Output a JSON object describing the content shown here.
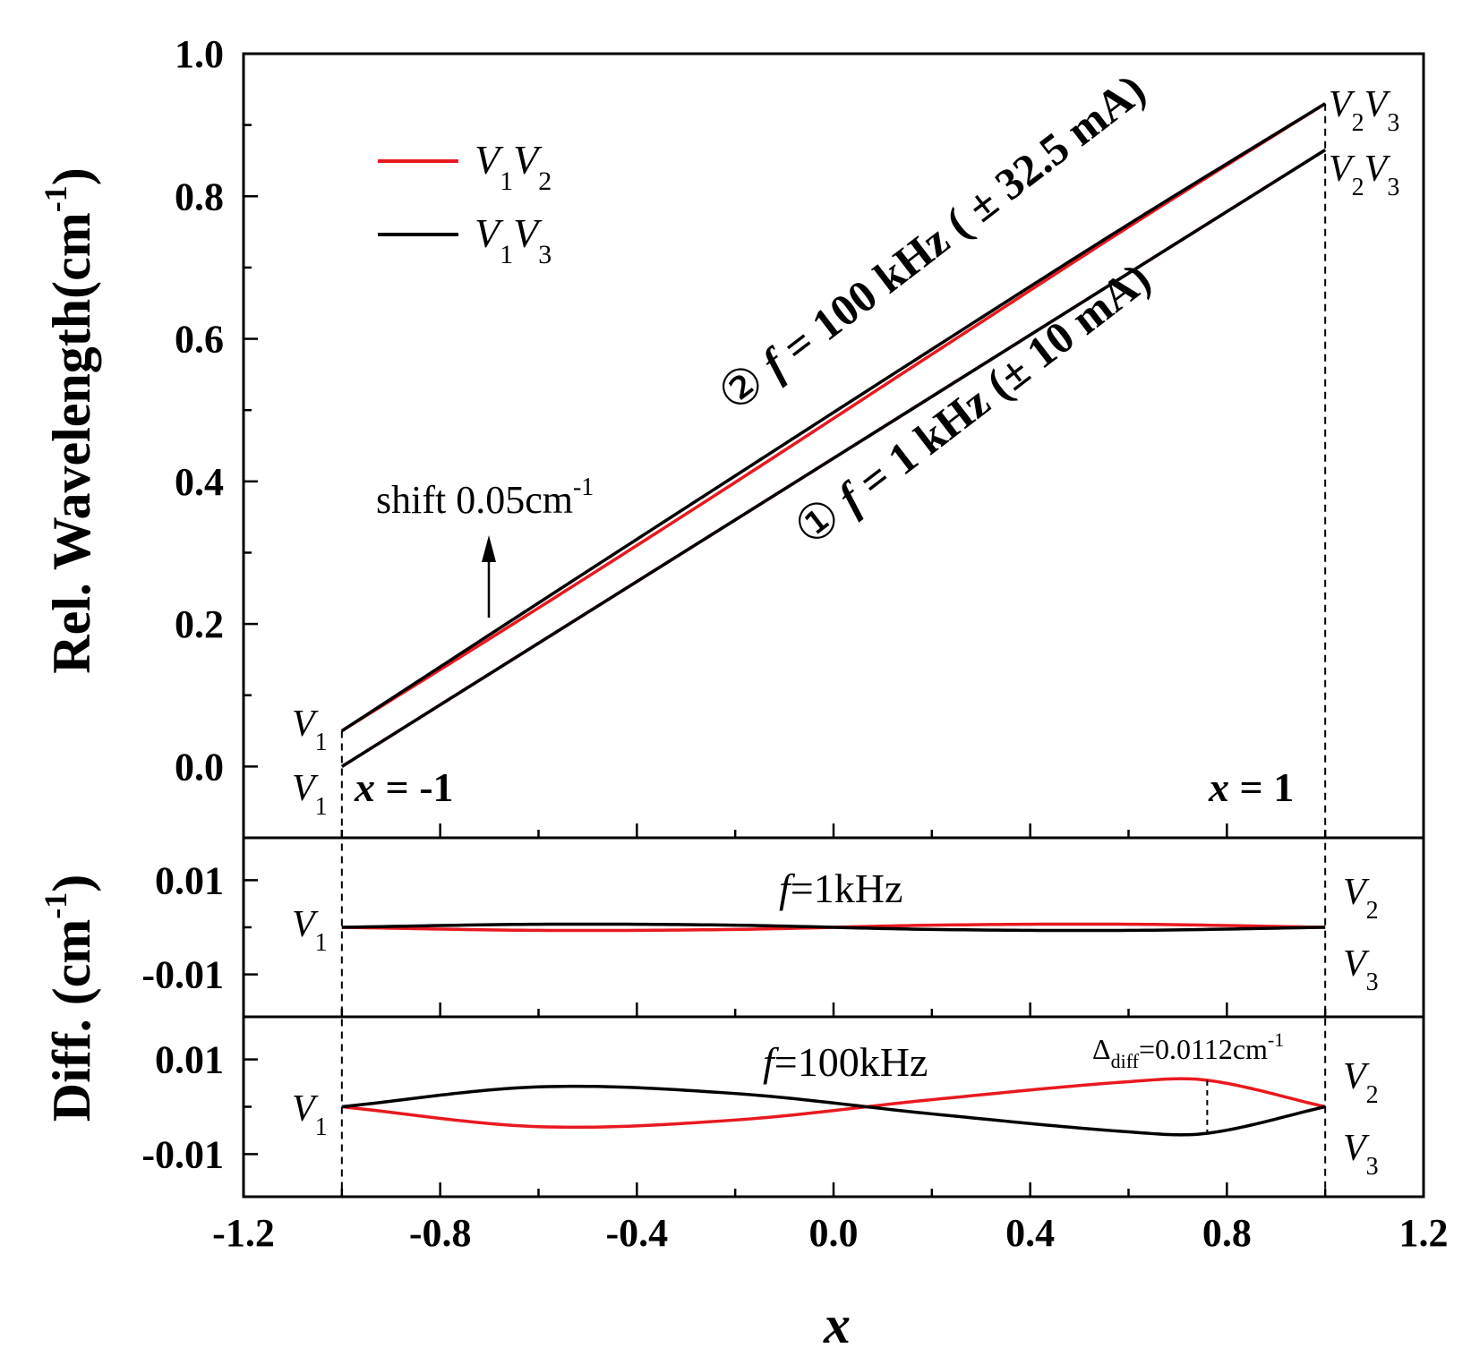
{
  "chart_data": [
    {
      "type": "line",
      "panel": "main",
      "title": "",
      "ylabel": "Rel. Wavelength(cm",
      "ylabel_sup": "-1",
      "xlim": [
        -1.2,
        1.2
      ],
      "ylim": [
        -0.1,
        1.0
      ],
      "yticks": [
        0.0,
        0.2,
        0.4,
        0.6,
        0.8,
        1.0
      ],
      "ytick_labels": [
        "0.0",
        "0.2",
        "0.4",
        "0.6",
        "0.8",
        "1.0"
      ],
      "series": [
        {
          "name": "① f = 1 kHz V1V2",
          "color": "#e8191f",
          "x": [
            -1,
            1
          ],
          "y": [
            0.0,
            0.865
          ]
        },
        {
          "name": "① f = 1 kHz V1V3",
          "color": "#000000",
          "x": [
            -1,
            1
          ],
          "y": [
            0.0,
            0.865
          ]
        },
        {
          "name": "② f = 100 kHz V1V2",
          "color": "#e8191f",
          "x": [
            -1,
            -0.6,
            -0.2,
            0.2,
            0.6,
            1
          ],
          "y": [
            0.05,
            0.2225,
            0.3987,
            0.5783,
            0.757,
            0.93
          ]
        },
        {
          "name": "② f = 100 kHz V1V3",
          "color": "#000000",
          "x": [
            -1,
            -0.6,
            -0.2,
            0.2,
            0.6,
            1
          ],
          "y": [
            0.05,
            0.2295,
            0.4078,
            0.5853,
            0.7607,
            0.93
          ]
        }
      ],
      "annotations": {
        "curve2_circle": "②",
        "curve2_f": "f",
        "curve2_text": " = 100 kHz ( ± 32.5 mA)",
        "curve1_circle": "①",
        "curve1_f": "f",
        "curve1_text": " = 1 kHz (± 10 mA)",
        "shift_text": "shift 0.05cm",
        "shift_sup": "-1",
        "x_left_x": "x",
        "x_left_rest": " = -1",
        "x_right_x": "x",
        "x_right_rest": " = 1",
        "v1": "V",
        "v1_sub": "1",
        "v2": "V",
        "v2_sub": "2",
        "v3": "V",
        "v3_sub": "3"
      },
      "legend": {
        "position": "top-left",
        "entries": [
          {
            "label": "V",
            "sub": "1",
            "label2": "V",
            "sub2": "2",
            "color": "#e8191f"
          },
          {
            "label": "V",
            "sub": "1",
            "label2": "V",
            "sub2": "3",
            "color": "#000000"
          }
        ]
      }
    },
    {
      "type": "line",
      "panel": "diff-1kHz",
      "ylim": [
        -0.019,
        0.019
      ],
      "yticks": [
        0.01,
        -0.01
      ],
      "ytick_labels": [
        "0.01",
        "-0.01"
      ],
      "label_f": "f",
      "label_rest": "=1kHz",
      "series": [
        {
          "name": "V1V2",
          "color": "#e8191f",
          "x": [
            -1,
            -0.6,
            -0.2,
            0.2,
            0.6,
            1
          ],
          "y": [
            0.0,
            -0.00065,
            -0.00045,
            0.00045,
            0.00065,
            0.0
          ]
        },
        {
          "name": "V1V3",
          "color": "#000000",
          "x": [
            -1,
            -0.6,
            -0.2,
            0.2,
            0.6,
            1
          ],
          "y": [
            0.0,
            0.00065,
            0.00045,
            -0.00045,
            -0.00065,
            0.0
          ]
        }
      ]
    },
    {
      "type": "line",
      "panel": "diff-100kHz",
      "ylim": [
        -0.019,
        0.019
      ],
      "yticks": [
        0.01,
        -0.01
      ],
      "ytick_labels": [
        "0.01",
        "-0.01"
      ],
      "label_f": "f",
      "label_rest": "=100kHz",
      "delta_text": "Δ",
      "delta_sub": "diff",
      "delta_rest": "=0.0112cm",
      "delta_sup": "-1",
      "series": [
        {
          "name": "V1V2",
          "color": "#e8191f",
          "x": [
            -1,
            -0.6,
            -0.2,
            0.2,
            0.6,
            0.76,
            1
          ],
          "y": [
            0.0,
            -0.0042,
            -0.0028,
            0.0015,
            0.0053,
            0.0056,
            0.0
          ]
        },
        {
          "name": "V1V3",
          "color": "#000000",
          "x": [
            -1,
            -0.6,
            -0.2,
            0.2,
            0.6,
            0.76,
            1
          ],
          "y": [
            0.0,
            0.0042,
            0.0028,
            -0.0015,
            -0.0053,
            -0.0056,
            0.0
          ]
        }
      ]
    }
  ],
  "shared_axes": {
    "xlabel": "x",
    "xticks": [
      -1.2,
      -0.8,
      -0.4,
      0.0,
      0.4,
      0.8,
      1.2
    ],
    "xtick_labels": [
      "-1.2",
      "-0.8",
      "-0.4",
      "0.0",
      "0.4",
      "0.8",
      "1.2"
    ],
    "diff_ylabel": "Diff. (cm",
    "diff_ylabel_sup": "-1",
    "diff_ylabel_close": ")"
  }
}
